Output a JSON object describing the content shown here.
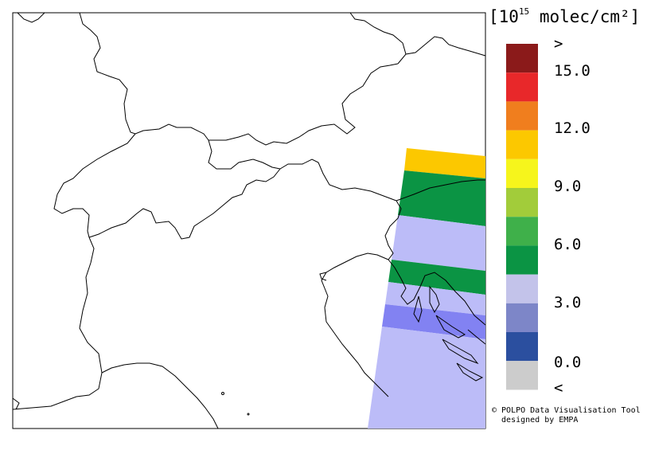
{
  "legend": {
    "unit_prefix": "[10",
    "unit_exponent": "15",
    "unit_suffix": " molec/cm²]",
    "labels": [
      ">",
      "15.0",
      "12.0",
      "9.0",
      "6.0",
      "3.0",
      "0.0",
      "<"
    ],
    "bins": [
      {
        "color": "#8b1a1a"
      },
      {
        "color": "#e8282a"
      },
      {
        "color": "#f07e1e"
      },
      {
        "color": "#fcc800"
      },
      {
        "color": "#f6f51c"
      },
      {
        "color": "#a2cc3a"
      },
      {
        "color": "#3fb04a"
      },
      {
        "color": "#0b9444"
      },
      {
        "color": "#c3c3ea"
      },
      {
        "color": "#7d86c8"
      },
      {
        "color": "#2b4f9f"
      },
      {
        "color": "#cccccc"
      }
    ]
  },
  "credit": {
    "line1": "© POLPO Data Visualisation Tool",
    "line2": "  designed by EMPA"
  },
  "swath": {
    "segments": [
      {
        "value_class": "9.0-10.5",
        "color": "#fcc800"
      },
      {
        "value_class": "4.5-6.0",
        "color": "#0b9444"
      },
      {
        "value_class": "<3.0",
        "color": "#bcbcf8"
      },
      {
        "value_class": "4.5-6.0",
        "color": "#0b9444"
      },
      {
        "value_class": "<3.0",
        "color": "#bcbcf8"
      },
      {
        "value_class": "1.5-3.0",
        "color": "#8282f2"
      },
      {
        "value_class": "<3.0",
        "color": "#bcbcf8"
      }
    ]
  }
}
